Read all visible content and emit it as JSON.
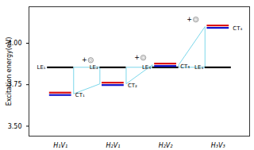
{
  "chart_data": {
    "type": "level",
    "ylabel": "Excitation energy(eV)",
    "categories": [
      "H₁V₁",
      "H₂V₁",
      "H₂V₂",
      "H₃V₃"
    ],
    "series": [
      {
        "color": "#111111",
        "values": [
          3.855,
          3.855,
          3.855,
          3.855
        ],
        "labels": [
          "LE₁",
          "LE₂",
          "LE₃",
          "LE₄"
        ]
      },
      {
        "color": [
          "#dd1111",
          "#1111cc"
        ],
        "values": [
          3.695,
          3.755,
          3.87,
          4.1
        ],
        "labels": [
          "CT₁",
          "CT₂",
          "CT₃",
          "CT₄"
        ]
      }
    ],
    "color": "#6dd3e8",
    "annotations": [
      {
        "text": "+",
        "from": "H₁V₁",
        "to": "H₂V₁",
        "color": "#555555"
      },
      {
        "text": "+",
        "from": "H₂V₁",
        "to": "H₂V₂",
        "color": "#555555"
      },
      {
        "text": "+",
        "from": "H₂V₂",
        "to": "H₃V₃",
        "color": "#555555"
      }
    ],
    "ylim": [
      3.44,
      4.22
    ],
    "yticks": [
      {
        "value": 3.5,
        "label": "3.50"
      },
      3.75,
      {
        "value": 4,
        "label": "4.00"
      }
    ]
  }
}
